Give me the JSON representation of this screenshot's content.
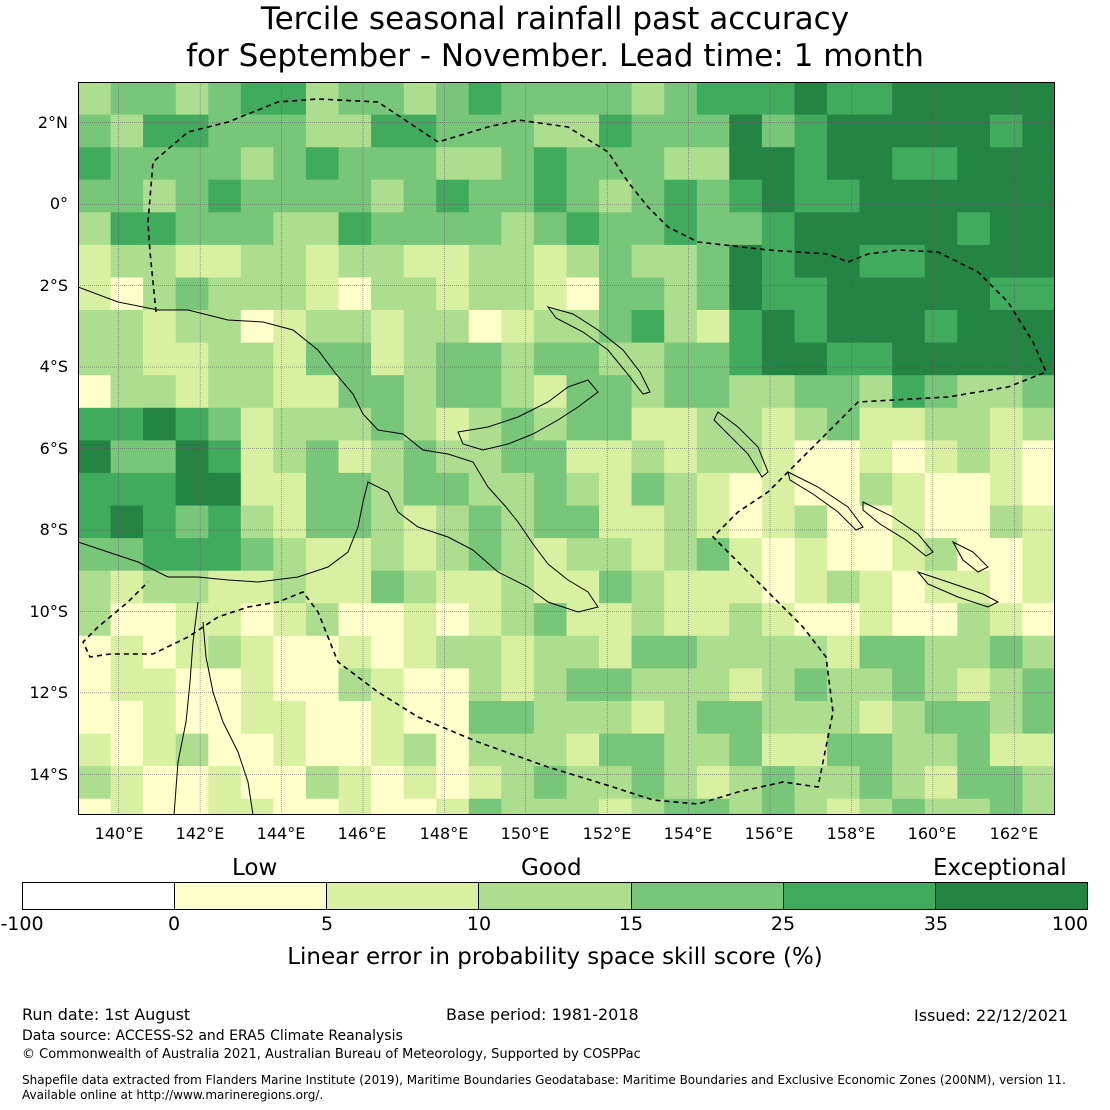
{
  "title": {
    "line1": "Tercile seasonal rainfall past accuracy",
    "line2": "for September - November. Lead time: 1 month"
  },
  "map": {
    "lat_labels": [
      "2°N",
      "0°",
      "2°S",
      "4°S",
      "6°S",
      "8°S",
      "10°S",
      "12°S",
      "14°S"
    ],
    "lon_labels": [
      "140°E",
      "142°E",
      "144°E",
      "146°E",
      "148°E",
      "150°E",
      "152°E",
      "154°E",
      "156°E",
      "158°E",
      "160°E",
      "162°E"
    ],
    "extent": {
      "lon_min": 139,
      "lon_max": 163,
      "lat_min": -15,
      "lat_max": 3
    },
    "grid_resolution_deg": 0.8,
    "colors": [
      "#ffffff",
      "#ffffcc",
      "#d9f0a3",
      "#addd8e",
      "#78c679",
      "#41ab5d",
      "#238443"
    ]
  },
  "colorbar": {
    "categories": [
      "Low",
      "Good",
      "Exceptional"
    ],
    "bounds": [
      "-100",
      "0",
      "5",
      "10",
      "15",
      "25",
      "35",
      "100"
    ],
    "label": "Linear error in probability space skill score (%)"
  },
  "footer": {
    "run_date": "Run date: 1st August",
    "base_period": "Base period: 1981-2018",
    "issued": "Issued: 22/12/2021",
    "data_source": "Data source: ACCESS-S2 and ERA5 Climate Reanalysis",
    "copyright": "© Commonwealth of Australia 2021, Australian Bureau of Meteorology, Supported by COSPPac",
    "shapefile1": "Shapefile data extracted from Flanders Marine Institute (2019), Maritime Boundaries Geodatabase: Maritime Boundaries and Exclusive Economic Zones (200NM), version 11.",
    "shapefile2": "Available online at http://www.marineregions.org/."
  }
}
